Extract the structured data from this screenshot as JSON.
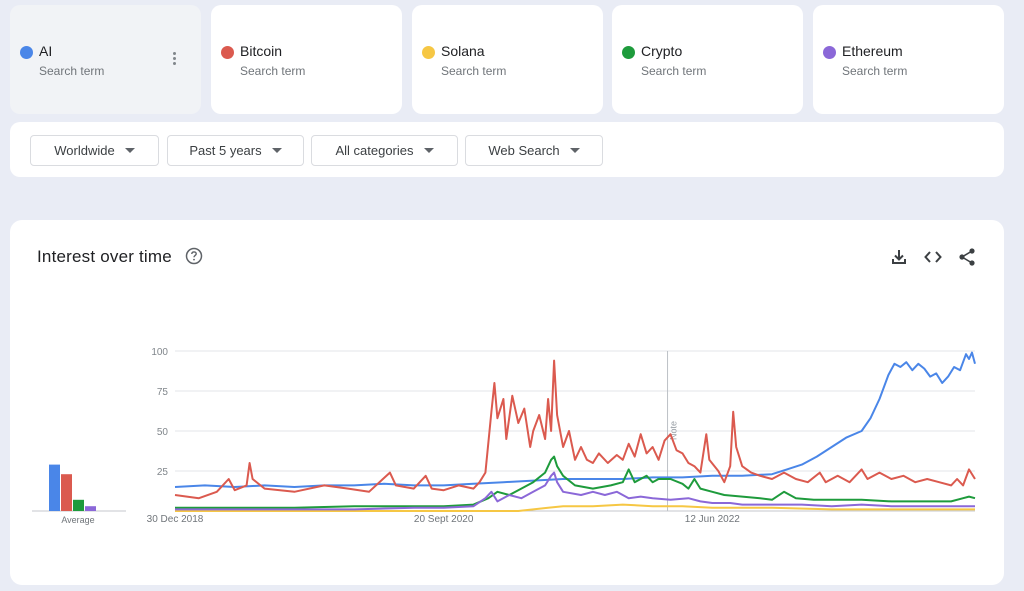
{
  "terms": [
    {
      "name": "AI",
      "sub": "Search term",
      "color": "#4a86e8"
    },
    {
      "name": "Bitcoin",
      "sub": "Search term",
      "color": "#db5a4f"
    },
    {
      "name": "Solana",
      "sub": "Search term",
      "color": "#f6c744"
    },
    {
      "name": "Crypto",
      "sub": "Search term",
      "color": "#1e9b3c"
    },
    {
      "name": "Ethereum",
      "sub": "Search term",
      "color": "#8b68d8"
    }
  ],
  "filters": {
    "region": "Worldwide",
    "period": "Past 5 years",
    "category": "All categories",
    "search_type": "Web Search"
  },
  "panel": {
    "title": "Interest over time"
  },
  "icons": {
    "help": "help-circle-icon",
    "download": "download-icon",
    "embed": "embed-code-icon",
    "share": "share-icon"
  },
  "chart_data": {
    "type": "line",
    "title": "Interest over time",
    "ylim": [
      0,
      100
    ],
    "yticks": [
      25,
      50,
      75,
      100
    ],
    "xticks": [
      {
        "at": 0,
        "label": "30 Dec 2018"
      },
      {
        "at": 90,
        "label": "20 Sept 2020"
      },
      {
        "at": 180,
        "label": "12 Jun 2022"
      }
    ],
    "x_range": [
      0,
      268
    ],
    "note_marker": {
      "at": 165,
      "label": "Note"
    },
    "grid": true,
    "average_label": "Average",
    "averages": [
      {
        "name": "AI",
        "value": 29
      },
      {
        "name": "Bitcoin",
        "value": 23
      },
      {
        "name": "Crypto",
        "value": 7
      },
      {
        "name": "Ethereum",
        "value": 3
      }
    ],
    "series": [
      {
        "name": "AI",
        "color": "#4a86e8",
        "points": [
          [
            0,
            15
          ],
          [
            10,
            16
          ],
          [
            20,
            15
          ],
          [
            30,
            16
          ],
          [
            40,
            15
          ],
          [
            50,
            16
          ],
          [
            60,
            16
          ],
          [
            70,
            17
          ],
          [
            80,
            16
          ],
          [
            90,
            16
          ],
          [
            100,
            17
          ],
          [
            110,
            18
          ],
          [
            120,
            19
          ],
          [
            130,
            20
          ],
          [
            140,
            20
          ],
          [
            150,
            20
          ],
          [
            160,
            21
          ],
          [
            170,
            21
          ],
          [
            180,
            22
          ],
          [
            190,
            22
          ],
          [
            200,
            23
          ],
          [
            205,
            26
          ],
          [
            210,
            29
          ],
          [
            215,
            34
          ],
          [
            220,
            40
          ],
          [
            225,
            46
          ],
          [
            230,
            50
          ],
          [
            233,
            58
          ],
          [
            236,
            70
          ],
          [
            239,
            85
          ],
          [
            241,
            92
          ],
          [
            243,
            90
          ],
          [
            245,
            93
          ],
          [
            247,
            88
          ],
          [
            249,
            92
          ],
          [
            251,
            89
          ],
          [
            253,
            84
          ],
          [
            255,
            86
          ],
          [
            257,
            80
          ],
          [
            259,
            84
          ],
          [
            261,
            90
          ],
          [
            263,
            88
          ],
          [
            265,
            98
          ],
          [
            266,
            95
          ],
          [
            267,
            99
          ],
          [
            268,
            92
          ]
        ]
      },
      {
        "name": "Bitcoin",
        "color": "#db5a4f",
        "points": [
          [
            0,
            10
          ],
          [
            8,
            8
          ],
          [
            14,
            12
          ],
          [
            18,
            20
          ],
          [
            20,
            13
          ],
          [
            24,
            16
          ],
          [
            25,
            30
          ],
          [
            26,
            20
          ],
          [
            30,
            14
          ],
          [
            40,
            12
          ],
          [
            50,
            16
          ],
          [
            58,
            14
          ],
          [
            65,
            12
          ],
          [
            72,
            24
          ],
          [
            74,
            16
          ],
          [
            80,
            14
          ],
          [
            84,
            22
          ],
          [
            86,
            14
          ],
          [
            90,
            13
          ],
          [
            95,
            16
          ],
          [
            100,
            14
          ],
          [
            102,
            18
          ],
          [
            104,
            24
          ],
          [
            106,
            62
          ],
          [
            107,
            80
          ],
          [
            108,
            58
          ],
          [
            110,
            70
          ],
          [
            111,
            45
          ],
          [
            113,
            72
          ],
          [
            115,
            55
          ],
          [
            117,
            64
          ],
          [
            119,
            40
          ],
          [
            120,
            50
          ],
          [
            122,
            60
          ],
          [
            124,
            45
          ],
          [
            125,
            70
          ],
          [
            126,
            50
          ],
          [
            127,
            94
          ],
          [
            128,
            60
          ],
          [
            130,
            40
          ],
          [
            132,
            50
          ],
          [
            134,
            32
          ],
          [
            136,
            40
          ],
          [
            138,
            32
          ],
          [
            140,
            30
          ],
          [
            142,
            36
          ],
          [
            145,
            30
          ],
          [
            148,
            35
          ],
          [
            150,
            32
          ],
          [
            152,
            42
          ],
          [
            154,
            34
          ],
          [
            156,
            48
          ],
          [
            158,
            36
          ],
          [
            160,
            40
          ],
          [
            162,
            32
          ],
          [
            164,
            44
          ],
          [
            166,
            48
          ],
          [
            168,
            38
          ],
          [
            170,
            36
          ],
          [
            172,
            30
          ],
          [
            174,
            28
          ],
          [
            176,
            24
          ],
          [
            178,
            48
          ],
          [
            179,
            32
          ],
          [
            182,
            25
          ],
          [
            184,
            18
          ],
          [
            186,
            28
          ],
          [
            187,
            62
          ],
          [
            188,
            40
          ],
          [
            190,
            28
          ],
          [
            193,
            24
          ],
          [
            196,
            22
          ],
          [
            200,
            20
          ],
          [
            204,
            24
          ],
          [
            208,
            20
          ],
          [
            212,
            18
          ],
          [
            216,
            24
          ],
          [
            218,
            18
          ],
          [
            222,
            22
          ],
          [
            226,
            18
          ],
          [
            230,
            26
          ],
          [
            232,
            20
          ],
          [
            236,
            24
          ],
          [
            240,
            20
          ],
          [
            244,
            22
          ],
          [
            248,
            18
          ],
          [
            252,
            20
          ],
          [
            256,
            18
          ],
          [
            260,
            16
          ],
          [
            262,
            20
          ],
          [
            264,
            16
          ],
          [
            266,
            26
          ],
          [
            268,
            20
          ]
        ]
      },
      {
        "name": "Solana",
        "color": "#f6c744",
        "points": [
          [
            0,
            0
          ],
          [
            100,
            0
          ],
          [
            115,
            0
          ],
          [
            120,
            1
          ],
          [
            125,
            2
          ],
          [
            130,
            3
          ],
          [
            140,
            3
          ],
          [
            150,
            4
          ],
          [
            160,
            3
          ],
          [
            170,
            3
          ],
          [
            180,
            2
          ],
          [
            190,
            2
          ],
          [
            200,
            2
          ],
          [
            220,
            1
          ],
          [
            240,
            1
          ],
          [
            268,
            1
          ]
        ]
      },
      {
        "name": "Crypto",
        "color": "#1e9b3c",
        "points": [
          [
            0,
            2
          ],
          [
            20,
            2
          ],
          [
            40,
            2
          ],
          [
            60,
            3
          ],
          [
            80,
            3
          ],
          [
            90,
            3
          ],
          [
            100,
            4
          ],
          [
            105,
            8
          ],
          [
            108,
            12
          ],
          [
            112,
            10
          ],
          [
            116,
            14
          ],
          [
            120,
            18
          ],
          [
            124,
            24
          ],
          [
            126,
            32
          ],
          [
            127,
            34
          ],
          [
            128,
            28
          ],
          [
            130,
            22
          ],
          [
            134,
            16
          ],
          [
            140,
            14
          ],
          [
            146,
            16
          ],
          [
            150,
            18
          ],
          [
            152,
            26
          ],
          [
            154,
            18
          ],
          [
            158,
            22
          ],
          [
            160,
            18
          ],
          [
            162,
            20
          ],
          [
            166,
            20
          ],
          [
            170,
            17
          ],
          [
            172,
            14
          ],
          [
            174,
            20
          ],
          [
            176,
            14
          ],
          [
            180,
            12
          ],
          [
            184,
            10
          ],
          [
            190,
            9
          ],
          [
            196,
            8
          ],
          [
            200,
            7
          ],
          [
            204,
            12
          ],
          [
            208,
            8
          ],
          [
            214,
            7
          ],
          [
            220,
            7
          ],
          [
            230,
            7
          ],
          [
            240,
            6
          ],
          [
            250,
            6
          ],
          [
            260,
            6
          ],
          [
            264,
            8
          ],
          [
            266,
            9
          ],
          [
            268,
            8
          ]
        ]
      },
      {
        "name": "Ethereum",
        "color": "#8b68d8",
        "points": [
          [
            0,
            1
          ],
          [
            20,
            1
          ],
          [
            40,
            1
          ],
          [
            60,
            1
          ],
          [
            80,
            2
          ],
          [
            90,
            2
          ],
          [
            100,
            3
          ],
          [
            104,
            8
          ],
          [
            106,
            12
          ],
          [
            108,
            6
          ],
          [
            112,
            10
          ],
          [
            116,
            8
          ],
          [
            120,
            12
          ],
          [
            124,
            16
          ],
          [
            126,
            22
          ],
          [
            127,
            24
          ],
          [
            128,
            18
          ],
          [
            130,
            12
          ],
          [
            136,
            10
          ],
          [
            140,
            12
          ],
          [
            144,
            10
          ],
          [
            148,
            12
          ],
          [
            152,
            8
          ],
          [
            156,
            9
          ],
          [
            160,
            8
          ],
          [
            166,
            7
          ],
          [
            172,
            8
          ],
          [
            176,
            6
          ],
          [
            180,
            5
          ],
          [
            186,
            5
          ],
          [
            190,
            4
          ],
          [
            200,
            4
          ],
          [
            210,
            4
          ],
          [
            220,
            3
          ],
          [
            230,
            4
          ],
          [
            240,
            3
          ],
          [
            250,
            3
          ],
          [
            260,
            3
          ],
          [
            268,
            3
          ]
        ]
      }
    ]
  }
}
